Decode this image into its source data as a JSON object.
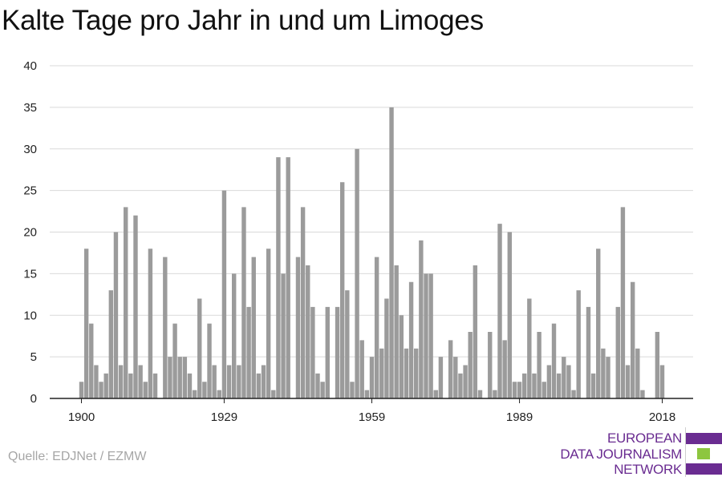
{
  "title": "Kalte Tage pro Jahr in und um Limoges",
  "source": "Quelle: EDJNet / EZMW",
  "logo": {
    "lines": [
      "EUROPEAN",
      "DATA JOURNALISM",
      "NETWORK"
    ],
    "colors": {
      "primary": "#6a2c91",
      "accent": "#8dc63f"
    }
  },
  "colors": {
    "bar": "#9b9b9b",
    "grid": "#d9d9d9",
    "axis": "#222222"
  },
  "chart_data": {
    "type": "bar",
    "title": "Kalte Tage pro Jahr in und um Limoges",
    "xlabel": "",
    "ylabel": "",
    "ylim": [
      0,
      40
    ],
    "xlim": [
      1900,
      2018
    ],
    "grid": true,
    "y_ticks": [
      "0",
      "5",
      "10",
      "15",
      "20",
      "25",
      "30",
      "35",
      "40"
    ],
    "x_ticks": [
      "1900",
      "1929",
      "1959",
      "1989",
      "2018"
    ],
    "x_tick_years": [
      1900,
      1929,
      1959,
      1989,
      2018
    ],
    "x": [
      1900,
      1901,
      1902,
      1903,
      1904,
      1905,
      1906,
      1907,
      1908,
      1909,
      1910,
      1911,
      1912,
      1913,
      1914,
      1915,
      1916,
      1917,
      1918,
      1919,
      1920,
      1921,
      1922,
      1923,
      1924,
      1925,
      1926,
      1927,
      1928,
      1929,
      1930,
      1931,
      1932,
      1933,
      1934,
      1935,
      1936,
      1937,
      1938,
      1939,
      1940,
      1941,
      1942,
      1943,
      1944,
      1945,
      1946,
      1947,
      1948,
      1949,
      1950,
      1951,
      1952,
      1953,
      1954,
      1955,
      1956,
      1957,
      1958,
      1959,
      1960,
      1961,
      1962,
      1963,
      1964,
      1965,
      1966,
      1967,
      1968,
      1969,
      1970,
      1971,
      1972,
      1973,
      1974,
      1975,
      1976,
      1977,
      1978,
      1979,
      1980,
      1981,
      1982,
      1983,
      1984,
      1985,
      1986,
      1987,
      1988,
      1989,
      1990,
      1991,
      1992,
      1993,
      1994,
      1995,
      1996,
      1997,
      1998,
      1999,
      2000,
      2001,
      2002,
      2003,
      2004,
      2005,
      2006,
      2007,
      2008,
      2009,
      2010,
      2011,
      2012,
      2013,
      2014,
      2015,
      2016,
      2017,
      2018
    ],
    "values": [
      2,
      18,
      9,
      4,
      2,
      3,
      13,
      20,
      4,
      23,
      3,
      22,
      4,
      2,
      18,
      3,
      0,
      17,
      5,
      9,
      5,
      5,
      3,
      1,
      12,
      2,
      9,
      4,
      1,
      25,
      4,
      15,
      4,
      23,
      11,
      17,
      3,
      4,
      18,
      1,
      29,
      15,
      29,
      0,
      17,
      23,
      16,
      11,
      3,
      2,
      11,
      0,
      11,
      26,
      13,
      2,
      30,
      7,
      1,
      5,
      17,
      6,
      12,
      35,
      16,
      10,
      6,
      14,
      6,
      19,
      15,
      15,
      1,
      5,
      0,
      7,
      5,
      3,
      4,
      8,
      16,
      1,
      0,
      8,
      1,
      21,
      7,
      20,
      2,
      2,
      3,
      12,
      3,
      8,
      2,
      4,
      9,
      3,
      5,
      4,
      1,
      13,
      0,
      11,
      3,
      18,
      6,
      5,
      0,
      11,
      23,
      4,
      14,
      6,
      1,
      0,
      0,
      8,
      4
    ]
  }
}
